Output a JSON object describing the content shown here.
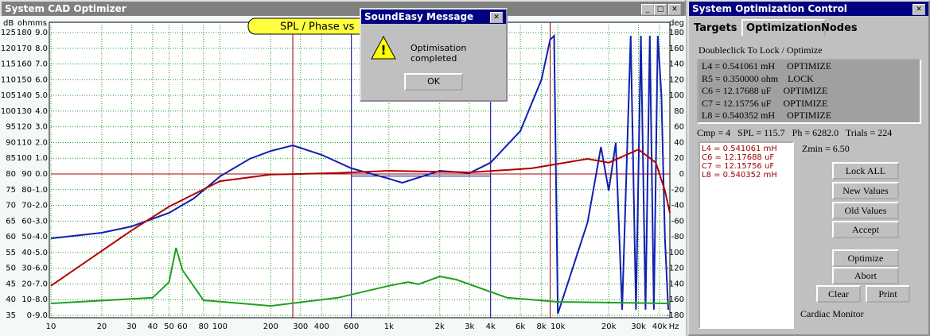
{
  "main_window": {
    "title": "System CAD Optimizer"
  },
  "chart_data": {
    "type": "line",
    "title": "SPL / Phase vs",
    "x_unit": "Hz",
    "y_units": [
      "dB",
      "ohm",
      "ms"
    ],
    "y2_unit": "deg",
    "xlog": true,
    "xlim": [
      10,
      46000
    ],
    "xticks": [
      10,
      20,
      30,
      40,
      50,
      60,
      80,
      100,
      200,
      300,
      400,
      600,
      {
        "value": 1000,
        "label": "1k"
      },
      {
        "value": 2000,
        "label": "2k"
      },
      {
        "value": 3000,
        "label": "3k"
      },
      {
        "value": 4000,
        "label": "4k"
      },
      {
        "value": 6000,
        "label": "6k"
      },
      {
        "value": 8000,
        "label": "8k"
      },
      {
        "value": 10000,
        "label": "10k"
      },
      {
        "value": 20000,
        "label": "20k"
      },
      {
        "value": 30000,
        "label": "30k"
      },
      {
        "value": 40000,
        "label": "40k"
      }
    ],
    "ylim": [
      35,
      125
    ],
    "yticks": [
      125,
      120,
      115,
      110,
      105,
      100,
      95,
      90,
      85,
      80,
      75,
      70,
      65,
      60,
      55,
      50,
      45,
      40,
      35
    ],
    "ohm_ticks": [
      180,
      170,
      160,
      150,
      140,
      130,
      120,
      110,
      100,
      90,
      80,
      70,
      60,
      50,
      40,
      30,
      20,
      10,
      0
    ],
    "ms_ticks": [
      {
        "value": 9,
        "label": "9.0"
      },
      {
        "value": 8,
        "label": "8.0"
      },
      {
        "value": 7,
        "label": "7.0"
      },
      {
        "value": 6,
        "label": "6.0"
      },
      {
        "value": 5,
        "label": "5.0"
      },
      {
        "value": 4,
        "label": "4.0"
      },
      {
        "value": 3,
        "label": "3.0"
      },
      {
        "value": 2,
        "label": "2.0"
      },
      {
        "value": 1,
        "label": "1.0"
      },
      {
        "value": 0,
        "label": "0.0"
      },
      {
        "value": -1,
        "label": "-1.0"
      },
      {
        "value": -2,
        "label": "-2.0"
      },
      {
        "value": -3,
        "label": "-3.0"
      },
      {
        "value": -4,
        "label": "-4.0"
      },
      {
        "value": -5,
        "label": "-5.0"
      },
      {
        "value": -6,
        "label": "-6.0"
      },
      {
        "value": -7,
        "label": "-7.0"
      },
      {
        "value": -8,
        "label": "-8.0"
      },
      {
        "value": -9,
        "label": "-9.0"
      }
    ],
    "y2lim": [
      -180,
      180
    ],
    "y2ticks": [
      180,
      160,
      140,
      120,
      100,
      80,
      60,
      40,
      20,
      0,
      -20,
      -40,
      -60,
      -80,
      -100,
      -120,
      -140,
      -160,
      -180
    ],
    "grid": true,
    "markers": [
      {
        "x": 270,
        "color": "#800000"
      },
      {
        "x": 600,
        "color": "#0000a0"
      },
      {
        "x": 4000,
        "color": "#0000a0"
      },
      {
        "x": 9000,
        "color": "#800000"
      }
    ],
    "reference_lines": [
      {
        "value": 80,
        "color": "#a00000",
        "xrange": [
          10,
          46000
        ]
      },
      {
        "value": 79.3,
        "color": "#0000a0",
        "xrange": [
          600,
          4000
        ]
      }
    ],
    "series": [
      {
        "color": "#1020b0",
        "x": [
          10,
          20,
          30,
          50,
          70,
          100,
          150,
          200,
          270,
          400,
          600,
          1000,
          1200,
          2000,
          3000,
          4000,
          6000,
          8000,
          9000,
          9500,
          10000,
          15000,
          18000,
          20000,
          22000,
          24000,
          27000,
          29000,
          31000,
          33000,
          35000,
          37000,
          39000,
          41000,
          43000,
          45000
        ],
        "values": [
          59.5,
          61.3,
          63.3,
          67.6,
          72.2,
          79.2,
          84.8,
          87.3,
          89.1,
          86.1,
          81.8,
          78.5,
          77.2,
          81,
          80.3,
          83.6,
          93.7,
          110,
          122.7,
          124,
          35.5,
          64.6,
          88.6,
          74.7,
          89.9,
          36.8,
          124,
          36.8,
          124,
          36.8,
          124,
          36.8,
          124,
          105,
          59.5,
          36.8
        ]
      },
      {
        "color": "#b00000",
        "x": [
          10,
          30,
          50,
          100,
          200,
          500,
          1000,
          3000,
          7000,
          15000,
          20000,
          30000,
          38000,
          43000,
          46000
        ],
        "values": [
          44.4,
          62,
          69.6,
          77.7,
          79.8,
          80.3,
          81,
          80.5,
          81.8,
          84.8,
          83.6,
          87.8,
          83.6,
          74.7,
          67.6
        ]
      },
      {
        "color": "#20a020",
        "x": [
          10,
          40,
          50,
          55,
          60,
          80,
          200,
          500,
          1000,
          1300,
          1500,
          2000,
          2500,
          5000,
          10000,
          46000
        ],
        "values": [
          38.8,
          40.6,
          45.6,
          56.5,
          49.4,
          39.8,
          38,
          40.6,
          44.4,
          45.6,
          44.9,
          47.4,
          46.4,
          40.6,
          39.3,
          38.8
        ]
      }
    ]
  },
  "dialog": {
    "title": "SoundEasy Message",
    "message": "Optimisation completed",
    "button": "OK"
  },
  "control": {
    "title": "System Optimization Control",
    "tabs": [
      "Targets",
      "Optimization",
      "Nodes"
    ],
    "instruction": "Doubleclick To Lock / Optimize",
    "list": [
      "L4 = 0.541061 mH     OPTIMIZE",
      "R5 = 0.350000 ohm    LOCK",
      "C6 = 12.17688 uF     OPTIMIZE",
      "C7 = 12.15756 uF     OPTIMIZE",
      "L8 = 0.540352 mH     OPTIMIZE"
    ],
    "status": "Cmp = 4   SPL = 115.7   Ph = 6282.0   Trials = 224",
    "zmin": "Zmin = 6.50",
    "values": [
      "L4 = 0.541061 mH",
      "C6 = 12.17688 uF",
      "C7 = 12.15756 uF",
      "L8 = 0.540352 mH"
    ],
    "buttons": [
      "Lock ALL",
      "New Values",
      "Old Values",
      "Accept",
      "Optimize",
      "Abort",
      "Clear",
      "Print"
    ],
    "monitor": "Cardiac Monitor"
  }
}
